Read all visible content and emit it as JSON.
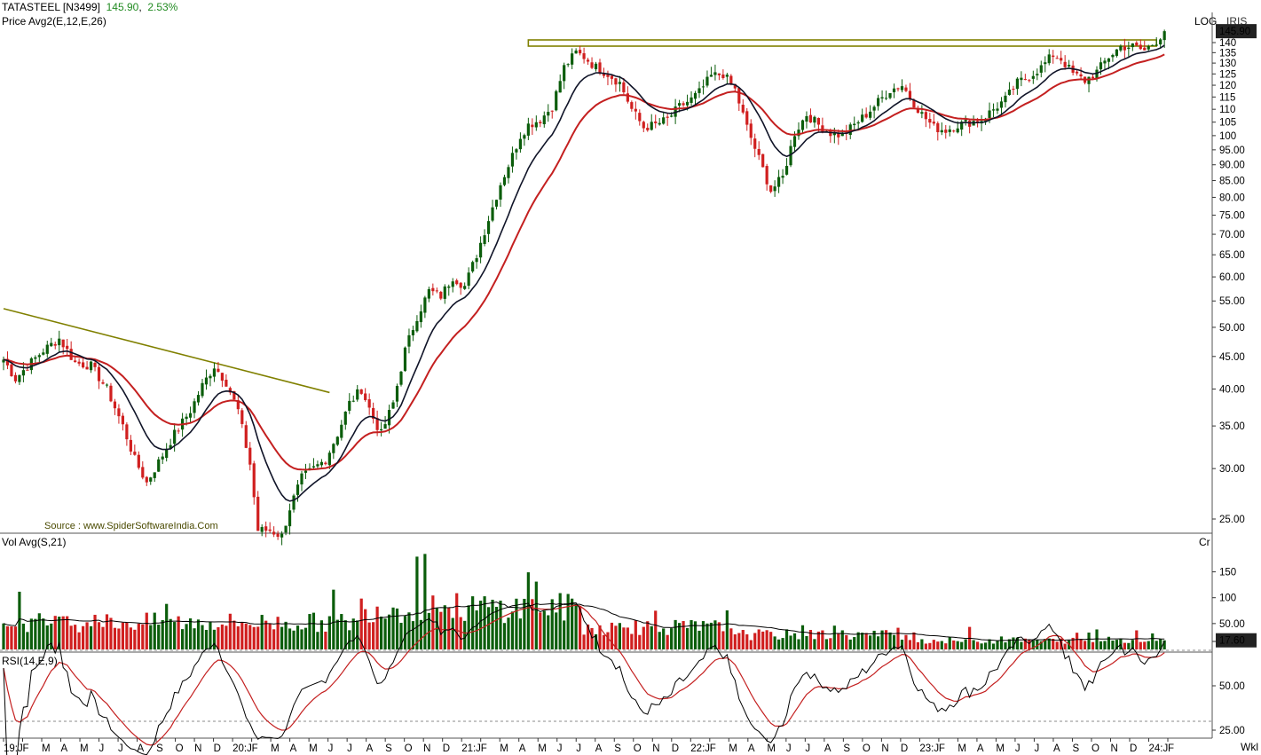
{
  "header": {
    "symbol": "TATASTEEL [N3499]",
    "price": "145.90",
    "change": "2.53%",
    "price_indicator": "Price  Avg2(E,12,E,26)",
    "log_label": "LOG",
    "iris_label": "IRIS",
    "source": "Source : www.SpiderSoftwareIndia.Com",
    "vol_indicator": "Vol  Avg(S,21)",
    "cr_label": "Cr",
    "rsi_indicator": "RSI(14,E,9)",
    "wk_label": "Wkl",
    "last_price_badge": "145.90",
    "last_vol_badge": "17.60"
  },
  "chart_data": {
    "type": "candlestick",
    "title": "TATASTEEL [N3499]",
    "timeframe": "Weekly",
    "price_scale": "log",
    "price_ticks": [
      "25.00",
      "30.00",
      "35.00",
      "40.00",
      "45.00",
      "50.00",
      "55.00",
      "60.00",
      "65.00",
      "70.00",
      "75.00",
      "80.00",
      "85.00",
      "90.00",
      "95.00",
      "100",
      "105",
      "110",
      "115",
      "120",
      "125",
      "130",
      "135",
      "140"
    ],
    "volume_ticks": [
      "50.00",
      "100",
      "150"
    ],
    "rsi_ticks": [
      "25.00",
      "50.00",
      "75.00"
    ],
    "x_ticks": [
      "19:J",
      "F",
      "M",
      "A",
      "M",
      "J",
      "J",
      "A",
      "S",
      "O",
      "N",
      "D",
      "20:J",
      "F",
      "M",
      "A",
      "M",
      "J",
      "J",
      "A",
      "S",
      "O",
      "N",
      "D",
      "21:J",
      "F",
      "M",
      "A",
      "M",
      "J",
      "J",
      "A",
      "S",
      "O",
      "N",
      "D",
      "22:J",
      "F",
      "M",
      "A",
      "M",
      "J",
      "J",
      "A",
      "S",
      "O",
      "N",
      "D",
      "23:J",
      "F",
      "M",
      "A",
      "M",
      "J",
      "J",
      "A",
      "S",
      "O",
      "N",
      "D",
      "24:J",
      "F"
    ],
    "last_close": 145.9,
    "last_volume": 17.6,
    "series": [
      {
        "name": "Price",
        "kind": "candles",
        "color_up": "#0b5d0b",
        "color_down": "#d01f1f",
        "anchors": [
          [
            0,
            44.5
          ],
          [
            3,
            41.5
          ],
          [
            6,
            43.5
          ],
          [
            10,
            46
          ],
          [
            14,
            48
          ],
          [
            18,
            44
          ],
          [
            22,
            43.5
          ],
          [
            26,
            40
          ],
          [
            30,
            35
          ],
          [
            33,
            31
          ],
          [
            36,
            28.5
          ],
          [
            40,
            31.5
          ],
          [
            43,
            34
          ],
          [
            47,
            37
          ],
          [
            50,
            40.5
          ],
          [
            53,
            43.5
          ],
          [
            56,
            41
          ],
          [
            59,
            37
          ],
          [
            62,
            30.5
          ],
          [
            64,
            24
          ],
          [
            67,
            24
          ],
          [
            70,
            23.5
          ],
          [
            72,
            26
          ],
          [
            75,
            29
          ],
          [
            78,
            30
          ],
          [
            81,
            31
          ],
          [
            84,
            34
          ],
          [
            87,
            38
          ],
          [
            90,
            40
          ],
          [
            93,
            36
          ],
          [
            95,
            34
          ],
          [
            98,
            38
          ],
          [
            101,
            46
          ],
          [
            104,
            52
          ],
          [
            107,
            57
          ],
          [
            110,
            56
          ],
          [
            113,
            60
          ],
          [
            116,
            58
          ],
          [
            119,
            65
          ],
          [
            122,
            74
          ],
          [
            125,
            84
          ],
          [
            128,
            93
          ],
          [
            130,
            100
          ],
          [
            132,
            104
          ],
          [
            135,
            106
          ],
          [
            138,
            111
          ],
          [
            141,
            128
          ],
          [
            144,
            135
          ],
          [
            146,
            133
          ],
          [
            149,
            128
          ],
          [
            152,
            125
          ],
          [
            155,
            121
          ],
          [
            158,
            110
          ],
          [
            161,
            103
          ],
          [
            164,
            104
          ],
          [
            167,
            106
          ],
          [
            170,
            111
          ],
          [
            173,
            114
          ],
          [
            175,
            117
          ],
          [
            178,
            124
          ],
          [
            181,
            125
          ],
          [
            184,
            118
          ],
          [
            187,
            103
          ],
          [
            190,
            92
          ],
          [
            193,
            82
          ],
          [
            196,
            86
          ],
          [
            199,
            101
          ],
          [
            202,
            108
          ],
          [
            205,
            104
          ],
          [
            208,
            101
          ],
          [
            211,
            100
          ],
          [
            214,
            104
          ],
          [
            217,
            108
          ],
          [
            220,
            113
          ],
          [
            223,
            118
          ],
          [
            226,
            120
          ],
          [
            228,
            115
          ],
          [
            231,
            108
          ],
          [
            234,
            103
          ],
          [
            237,
            102
          ],
          [
            240,
            104
          ],
          [
            243,
            105
          ],
          [
            246,
            106
          ],
          [
            249,
            110
          ],
          [
            252,
            114
          ],
          [
            255,
            121
          ],
          [
            258,
            124
          ],
          [
            261,
            128
          ],
          [
            264,
            134
          ],
          [
            266,
            132
          ],
          [
            269,
            125
          ],
          [
            272,
            122
          ],
          [
            275,
            126
          ],
          [
            278,
            133
          ],
          [
            281,
            138
          ],
          [
            284,
            138
          ],
          [
            287,
            136
          ],
          [
            290,
            141
          ],
          [
            292,
            145.9
          ]
        ]
      },
      {
        "name": "EMA 12",
        "color": "#101428"
      },
      {
        "name": "EMA 26",
        "color": "#c42020"
      },
      {
        "name": "Volume",
        "kind": "bars"
      },
      {
        "name": "Vol Avg 21",
        "color": "#000000"
      },
      {
        "name": "RSI 14",
        "color": "#000000"
      },
      {
        "name": "RSI signal 9",
        "color": "#c42020"
      }
    ],
    "trendline": {
      "color": "#808000",
      "from": {
        "x": 0,
        "y": 53.5
      },
      "to": {
        "x": 82,
        "y": 39.5
      }
    },
    "resistance": {
      "color": "#808000",
      "level": 140,
      "from_x": 132,
      "to_x": 290
    },
    "rsi_levels": [
      70,
      30
    ]
  }
}
